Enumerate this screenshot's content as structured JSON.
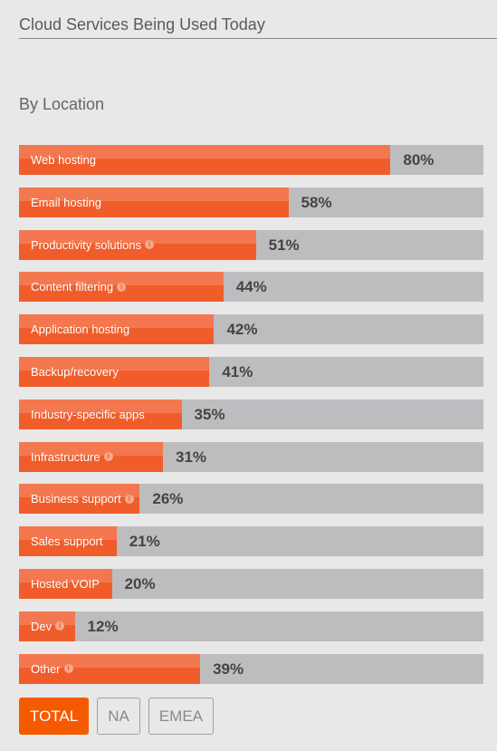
{
  "header": {
    "title": "Cloud Services Being Used Today",
    "subtitle": "By Location"
  },
  "colors": {
    "bar_fill": "#f05d2b",
    "bar_track": "#bdbdc0",
    "active_button": "#f55a00"
  },
  "chart_data": {
    "type": "bar",
    "orientation": "horizontal",
    "categories": [
      "Web hosting",
      "Email hosting",
      "Productivity solutions",
      "Content filtering",
      "Application hosting",
      "Backup/recovery",
      "Industry-specific apps",
      "Infrastructure",
      "Business support",
      "Sales support",
      "Hosted VOIP",
      "Dev",
      "Other"
    ],
    "values": [
      80,
      58,
      51,
      44,
      42,
      41,
      35,
      31,
      26,
      21,
      20,
      12,
      39
    ],
    "value_labels": [
      "80%",
      "58%",
      "51%",
      "44%",
      "42%",
      "41%",
      "35%",
      "31%",
      "26%",
      "21%",
      "20%",
      "12%",
      "39%"
    ],
    "has_info_icon": [
      false,
      false,
      true,
      true,
      false,
      false,
      false,
      true,
      true,
      false,
      false,
      true,
      true
    ],
    "xlim": [
      0,
      100
    ]
  },
  "filters": {
    "buttons": [
      "TOTAL",
      "NA",
      "EMEA"
    ],
    "active": "TOTAL"
  }
}
